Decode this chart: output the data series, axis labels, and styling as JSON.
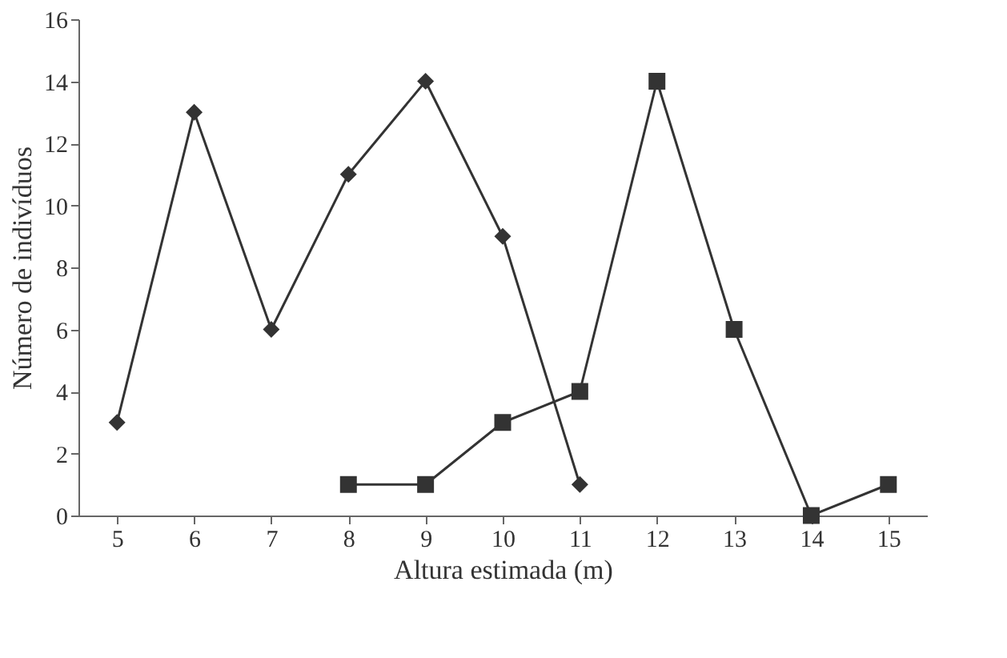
{
  "chart_data": {
    "type": "line",
    "xlabel": "Altura estimada (m)",
    "ylabel": "Número de indivíduos",
    "categories": [
      "5",
      "6",
      "7",
      "8",
      "9",
      "10",
      "11",
      "12",
      "13",
      "14",
      "15"
    ],
    "series": [
      {
        "color": "#333333",
        "marker": "diamond",
        "values": [
          3,
          13,
          6,
          11,
          14,
          9,
          1,
          null,
          null,
          null,
          null
        ]
      },
      {
        "color": "#333333",
        "marker": "square",
        "values": [
          null,
          null,
          null,
          1,
          1,
          3,
          4,
          14,
          6,
          0,
          1
        ]
      }
    ],
    "ylim": [
      0,
      16
    ],
    "yticks": [
      0,
      2,
      4,
      6,
      8,
      10,
      12,
      14,
      16
    ],
    "grid": false
  }
}
